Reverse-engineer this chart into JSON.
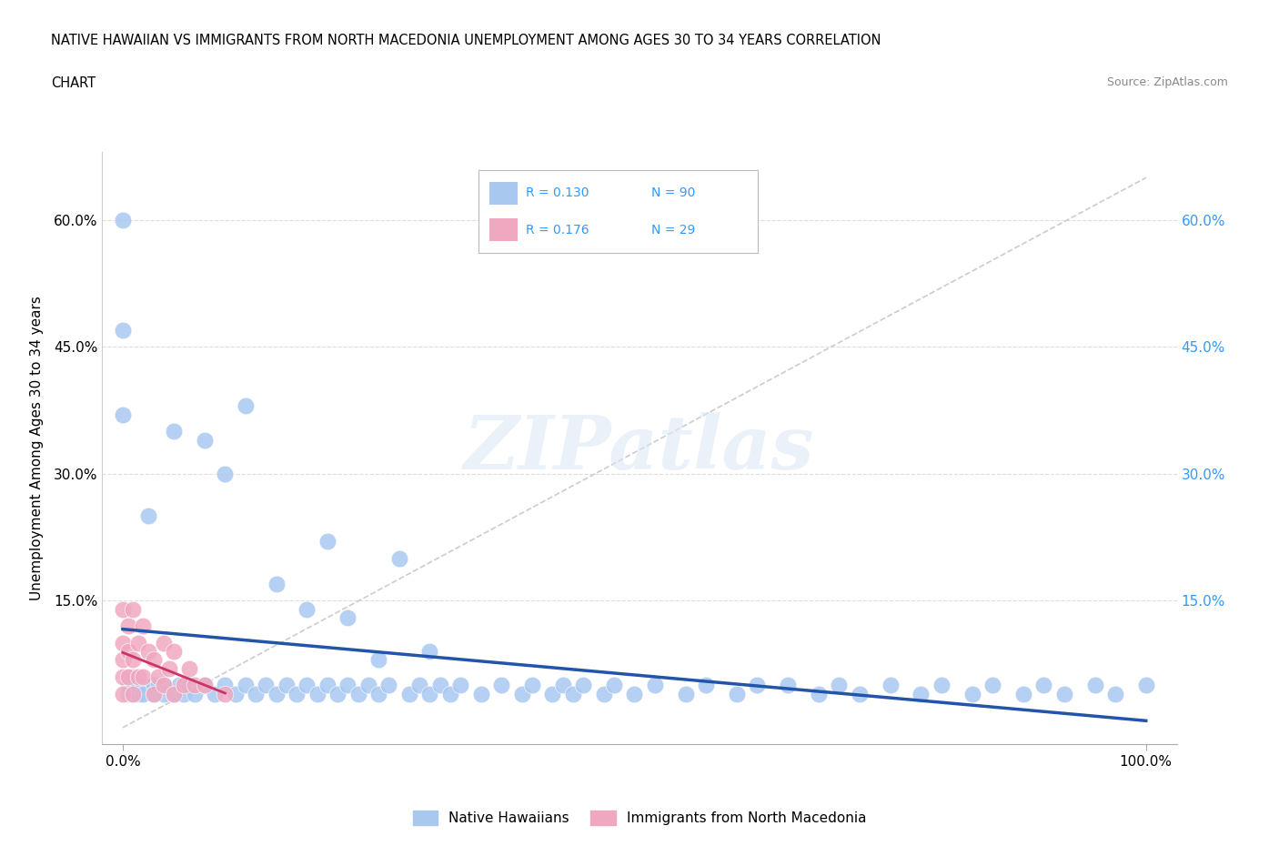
{
  "title_line1": "NATIVE HAWAIIAN VS IMMIGRANTS FROM NORTH MACEDONIA UNEMPLOYMENT AMONG AGES 30 TO 34 YEARS CORRELATION",
  "title_line2": "CHART",
  "source": "Source: ZipAtlas.com",
  "ylabel": "Unemployment Among Ages 30 to 34 years",
  "ytick_vals": [
    0.15,
    0.3,
    0.45,
    0.6
  ],
  "ytick_labels": [
    "15.0%",
    "30.0%",
    "45.0%",
    "60.0%"
  ],
  "color_blue": "#a8c8f0",
  "color_pink": "#f0a8c0",
  "color_line_blue": "#2255aa",
  "color_line_pink": "#cc3366",
  "color_line_diag": "#cccccc",
  "color_right_axis": "#3399ff",
  "watermark_text": "ZIPatlas",
  "legend_r1": "R = 0.130",
  "legend_n1": "N = 90",
  "legend_r2": "R = 0.176",
  "legend_n2": "N = 29",
  "nh_x": [
    0.0,
    0.0,
    0.0,
    0.005,
    0.005,
    0.01,
    0.01,
    0.01,
    0.015,
    0.015,
    0.02,
    0.02,
    0.025,
    0.03,
    0.03,
    0.035,
    0.04,
    0.04,
    0.05,
    0.055,
    0.06,
    0.065,
    0.07,
    0.08,
    0.09,
    0.1,
    0.11,
    0.12,
    0.13,
    0.14,
    0.15,
    0.16,
    0.17,
    0.18,
    0.19,
    0.2,
    0.21,
    0.22,
    0.23,
    0.24,
    0.25,
    0.26,
    0.27,
    0.28,
    0.29,
    0.3,
    0.31,
    0.32,
    0.33,
    0.35,
    0.37,
    0.39,
    0.4,
    0.42,
    0.43,
    0.44,
    0.45,
    0.47,
    0.48,
    0.5,
    0.52,
    0.55,
    0.57,
    0.6,
    0.62,
    0.65,
    0.68,
    0.7,
    0.72,
    0.75,
    0.78,
    0.8,
    0.83,
    0.85,
    0.88,
    0.9,
    0.92,
    0.95,
    0.97,
    1.0,
    0.05,
    0.08,
    0.1,
    0.12,
    0.15,
    0.18,
    0.2,
    0.22,
    0.25,
    0.3
  ],
  "nh_y": [
    0.6,
    0.47,
    0.37,
    0.05,
    0.04,
    0.06,
    0.04,
    0.05,
    0.04,
    0.05,
    0.05,
    0.04,
    0.25,
    0.05,
    0.04,
    0.05,
    0.04,
    0.05,
    0.04,
    0.05,
    0.04,
    0.05,
    0.04,
    0.05,
    0.04,
    0.05,
    0.04,
    0.05,
    0.04,
    0.05,
    0.04,
    0.05,
    0.04,
    0.05,
    0.04,
    0.05,
    0.04,
    0.05,
    0.04,
    0.05,
    0.04,
    0.05,
    0.2,
    0.04,
    0.05,
    0.04,
    0.05,
    0.04,
    0.05,
    0.04,
    0.05,
    0.04,
    0.05,
    0.04,
    0.05,
    0.04,
    0.05,
    0.04,
    0.05,
    0.04,
    0.05,
    0.04,
    0.05,
    0.04,
    0.05,
    0.05,
    0.04,
    0.05,
    0.04,
    0.05,
    0.04,
    0.05,
    0.04,
    0.05,
    0.04,
    0.05,
    0.04,
    0.05,
    0.04,
    0.05,
    0.35,
    0.34,
    0.3,
    0.38,
    0.17,
    0.14,
    0.22,
    0.13,
    0.08,
    0.09
  ],
  "nm_x": [
    0.0,
    0.0,
    0.0,
    0.0,
    0.0,
    0.005,
    0.005,
    0.005,
    0.01,
    0.01,
    0.01,
    0.015,
    0.015,
    0.02,
    0.02,
    0.025,
    0.03,
    0.03,
    0.035,
    0.04,
    0.04,
    0.045,
    0.05,
    0.05,
    0.06,
    0.065,
    0.07,
    0.08,
    0.1
  ],
  "nm_y": [
    0.14,
    0.1,
    0.08,
    0.06,
    0.04,
    0.12,
    0.09,
    0.06,
    0.14,
    0.08,
    0.04,
    0.1,
    0.06,
    0.12,
    0.06,
    0.09,
    0.08,
    0.04,
    0.06,
    0.1,
    0.05,
    0.07,
    0.09,
    0.04,
    0.05,
    0.07,
    0.05,
    0.05,
    0.04
  ]
}
